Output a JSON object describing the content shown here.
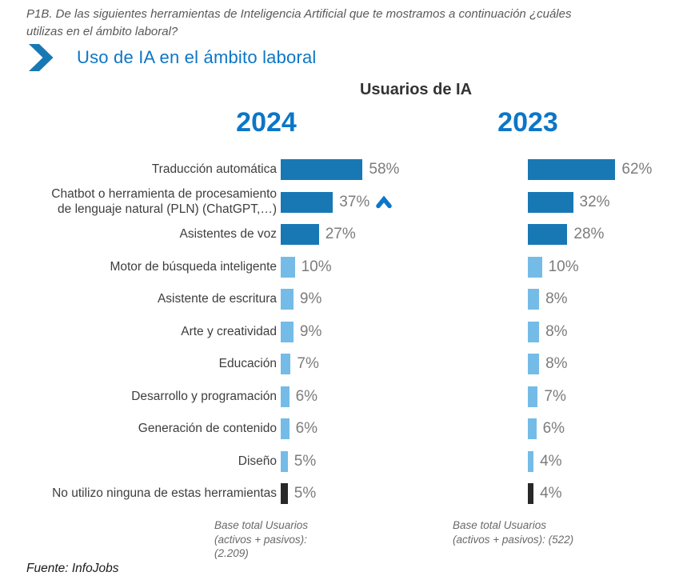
{
  "page": {
    "question": "P1B. De las siguientes herramientas de Inteligencia Artificial que te mostramos a continuación ¿cuáles\nutilizas en el ámbito laboral?",
    "section_title": "Uso de IA en el ámbito laboral",
    "footer_source": "Fuente: InfoJobs"
  },
  "chart_data": {
    "type": "bar",
    "orientation": "horizontal",
    "title": "Usuarios de IA",
    "value_suffix": "%",
    "value_range": [
      0,
      100
    ],
    "grid": false,
    "legend_position": "none",
    "categories": [
      "Traducción automática",
      "Chatbot o herramienta de procesamiento\nde lenguaje natural (PLN) (ChatGPT,…)",
      "Asistentes de voz",
      "Motor de búsqueda inteligente",
      "Asistente de escritura",
      "Arte y creatividad",
      "Educación",
      "Desarrollo y programación",
      "Generación de contenido",
      "Diseño",
      "No utilizo ninguna de estas herramientas"
    ],
    "series": [
      {
        "name": "2024",
        "values": [
          58,
          37,
          27,
          10,
          9,
          9,
          7,
          6,
          6,
          5,
          5
        ],
        "base_note": "Base total Usuarios\n(activos + pasivos):\n(2.209)"
      },
      {
        "name": "2023",
        "values": [
          62,
          32,
          28,
          10,
          8,
          8,
          8,
          7,
          6,
          4,
          4
        ],
        "base_note": "Base total Usuarios\n(activos + pasivos): (522)"
      }
    ],
    "row_styles": [
      "dark",
      "dark",
      "dark",
      "light",
      "light",
      "light",
      "light",
      "light",
      "light",
      "light",
      "none"
    ],
    "annotations": [
      {
        "series": "2024",
        "category_index": 1,
        "symbol": "up-arrow"
      }
    ],
    "colors": {
      "dark_blue": "#1878B4",
      "light_blue": "#74BCE7",
      "black_bar": "#282828",
      "accent_blue": "#0C76C7",
      "value_text": "#7C7C7C",
      "label_text": "#3E3E3E"
    }
  }
}
